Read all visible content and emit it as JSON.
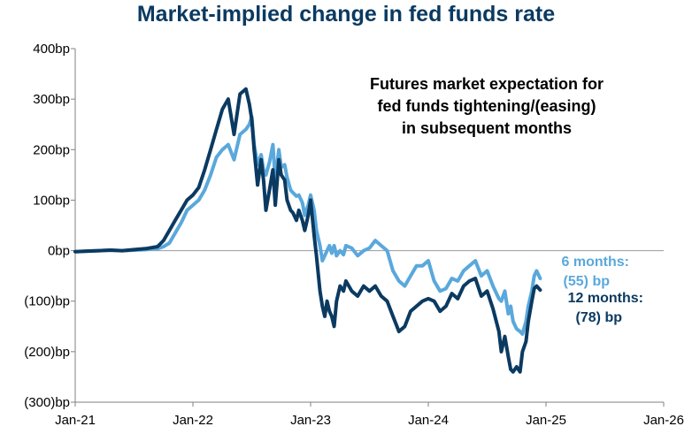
{
  "chart_data": {
    "type": "line",
    "title": "Market-implied change in fed funds rate",
    "xlabel": "",
    "ylabel": "",
    "annotation": "Futures market expectation for fed funds tightening/(easing) in subsequent months",
    "annotation_lines": [
      "Futures market expectation for",
      "fed funds tightening/(easing)",
      "in subsequent months"
    ],
    "x_tick_labels": [
      "Jan-21",
      "Jan-22",
      "Jan-23",
      "Jan-24",
      "Jan-25",
      "Jan-26"
    ],
    "x_range": [
      2021.0,
      2026.0
    ],
    "y_tick_labels": [
      "400bp",
      "300bp",
      "200bp",
      "100bp",
      "0bp",
      "(100)bp",
      "(200)bp",
      "(300)bp"
    ],
    "y_ticks": [
      400,
      300,
      200,
      100,
      0,
      -100,
      -200,
      -300
    ],
    "ylim": [
      -300,
      400
    ],
    "grid": false,
    "colors": {
      "six_months": "#5aa8dc",
      "twelve_months": "#0b3a61",
      "zero_line": "#a6a6a6",
      "axis": "#808080",
      "title": "#0b3a61"
    },
    "series": [
      {
        "name": "6 months",
        "end_label_line1": "6 months:",
        "end_label_line2": "(55) bp",
        "x": [
          2021.0,
          2021.1,
          2021.2,
          2021.3,
          2021.4,
          2021.5,
          2021.6,
          2021.7,
          2021.75,
          2021.8,
          2021.85,
          2021.9,
          2021.95,
          2022.0,
          2022.05,
          2022.1,
          2022.15,
          2022.2,
          2022.25,
          2022.3,
          2022.35,
          2022.4,
          2022.45,
          2022.48,
          2022.5,
          2022.52,
          2022.55,
          2022.58,
          2022.6,
          2022.62,
          2022.65,
          2022.68,
          2022.7,
          2022.73,
          2022.75,
          2022.78,
          2022.8,
          2022.83,
          2022.85,
          2022.88,
          2022.9,
          2022.93,
          2022.95,
          2022.98,
          2023.0,
          2023.03,
          2023.05,
          2023.08,
          2023.1,
          2023.12,
          2023.14,
          2023.16,
          2023.18,
          2023.2,
          2023.22,
          2023.25,
          2023.28,
          2023.3,
          2023.35,
          2023.4,
          2023.45,
          2023.5,
          2023.55,
          2023.6,
          2023.65,
          2023.7,
          2023.75,
          2023.8,
          2023.85,
          2023.9,
          2023.95,
          2024.0,
          2024.05,
          2024.1,
          2024.15,
          2024.2,
          2024.25,
          2024.3,
          2024.35,
          2024.4,
          2024.45,
          2024.5,
          2024.55,
          2024.6,
          2024.62,
          2024.65,
          2024.68,
          2024.7,
          2024.72,
          2024.75,
          2024.78,
          2024.8,
          2024.83,
          2024.85,
          2024.88,
          2024.9,
          2024.92,
          2024.95
        ],
        "values": [
          -2,
          -1,
          0,
          1,
          0,
          1,
          2,
          4,
          8,
          15,
          35,
          55,
          80,
          90,
          100,
          120,
          150,
          185,
          200,
          210,
          180,
          230,
          240,
          250,
          265,
          210,
          170,
          190,
          160,
          150,
          175,
          210,
          140,
          200,
          165,
          170,
          145,
          120,
          115,
          108,
          110,
          95,
          70,
          90,
          110,
          80,
          40,
          10,
          -20,
          -10,
          0,
          10,
          -5,
          10,
          -10,
          0,
          -8,
          10,
          5,
          -10,
          0,
          5,
          20,
          10,
          0,
          -40,
          -60,
          -70,
          -50,
          -30,
          -30,
          -20,
          -60,
          -80,
          -75,
          -55,
          -60,
          -40,
          -30,
          -20,
          -50,
          -40,
          -70,
          -95,
          -100,
          -80,
          -125,
          -110,
          -140,
          -155,
          -160,
          -165,
          -140,
          -110,
          -80,
          -50,
          -40,
          -55
        ]
      },
      {
        "name": "12 months",
        "end_label_line1": "12 months:",
        "end_label_line2": "(78) bp",
        "x": [
          2021.0,
          2021.1,
          2021.2,
          2021.3,
          2021.4,
          2021.5,
          2021.6,
          2021.7,
          2021.75,
          2021.8,
          2021.85,
          2021.9,
          2021.95,
          2022.0,
          2022.05,
          2022.1,
          2022.15,
          2022.2,
          2022.25,
          2022.3,
          2022.35,
          2022.4,
          2022.45,
          2022.48,
          2022.5,
          2022.52,
          2022.55,
          2022.58,
          2022.6,
          2022.62,
          2022.65,
          2022.68,
          2022.7,
          2022.73,
          2022.75,
          2022.78,
          2022.8,
          2022.83,
          2022.85,
          2022.88,
          2022.9,
          2022.93,
          2022.95,
          2022.98,
          2023.0,
          2023.03,
          2023.05,
          2023.08,
          2023.1,
          2023.12,
          2023.14,
          2023.16,
          2023.18,
          2023.2,
          2023.22,
          2023.25,
          2023.28,
          2023.3,
          2023.35,
          2023.4,
          2023.45,
          2023.5,
          2023.55,
          2023.6,
          2023.65,
          2023.7,
          2023.75,
          2023.8,
          2023.85,
          2023.9,
          2023.95,
          2024.0,
          2024.05,
          2024.1,
          2024.15,
          2024.2,
          2024.25,
          2024.3,
          2024.35,
          2024.4,
          2024.45,
          2024.5,
          2024.55,
          2024.6,
          2024.62,
          2024.65,
          2024.68,
          2024.7,
          2024.72,
          2024.75,
          2024.78,
          2024.8,
          2024.83,
          2024.85,
          2024.88,
          2024.9,
          2024.92,
          2024.95
        ],
        "values": [
          -2,
          -1,
          0,
          1,
          0,
          2,
          4,
          8,
          20,
          40,
          60,
          80,
          100,
          110,
          125,
          160,
          200,
          240,
          280,
          300,
          230,
          310,
          320,
          290,
          260,
          200,
          130,
          180,
          140,
          80,
          120,
          160,
          90,
          180,
          150,
          140,
          100,
          80,
          75,
          60,
          80,
          60,
          40,
          70,
          100,
          30,
          -10,
          -80,
          -110,
          -130,
          -100,
          -120,
          -130,
          -150,
          -100,
          -70,
          -80,
          -60,
          -80,
          -90,
          -70,
          -80,
          -70,
          -90,
          -100,
          -130,
          -160,
          -150,
          -120,
          -110,
          -100,
          -95,
          -100,
          -120,
          -110,
          -85,
          -95,
          -70,
          -60,
          -55,
          -90,
          -80,
          -115,
          -160,
          -200,
          -170,
          -210,
          -235,
          -240,
          -230,
          -240,
          -200,
          -180,
          -140,
          -100,
          -75,
          -70,
          -78
        ]
      }
    ]
  }
}
